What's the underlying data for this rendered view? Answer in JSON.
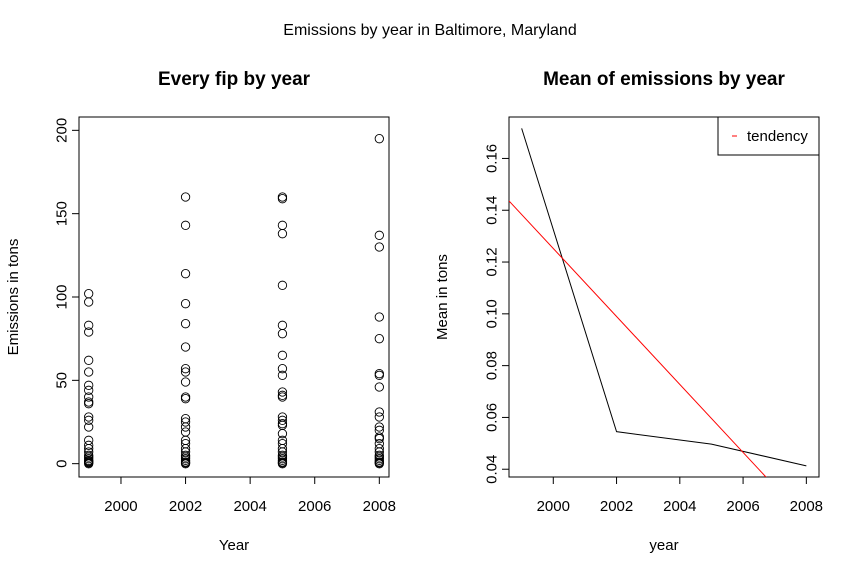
{
  "figure": {
    "title": "Emissions by year in Baltimore, Maryland"
  },
  "chart_data": [
    {
      "type": "scatter",
      "title": "Every fip by year",
      "xlabel": "Year",
      "ylabel": "Emissions in tons",
      "xlim": [
        1998.7,
        2008.3
      ],
      "ylim": [
        -8,
        208
      ],
      "x_ticks": [
        2000,
        2002,
        2004,
        2006,
        2008
      ],
      "y_ticks": [
        0,
        50,
        100,
        150,
        200
      ],
      "grid": false,
      "marker": "open-circle",
      "points": [
        [
          1999,
          102
        ],
        [
          1999,
          97
        ],
        [
          1999,
          83
        ],
        [
          1999,
          79
        ],
        [
          1999,
          62
        ],
        [
          1999,
          55
        ],
        [
          1999,
          47
        ],
        [
          1999,
          44
        ],
        [
          1999,
          40
        ],
        [
          1999,
          37
        ],
        [
          1999,
          36
        ],
        [
          1999,
          28
        ],
        [
          1999,
          26
        ],
        [
          1999,
          22
        ],
        [
          1999,
          14
        ],
        [
          1999,
          11
        ],
        [
          1999,
          9
        ],
        [
          1999,
          7
        ],
        [
          1999,
          5
        ],
        [
          1999,
          4
        ],
        [
          1999,
          3
        ],
        [
          1999,
          2
        ],
        [
          1999,
          1.5
        ],
        [
          1999,
          1
        ],
        [
          1999,
          0.5
        ],
        [
          1999,
          0
        ],
        [
          2002,
          160
        ],
        [
          2002,
          143
        ],
        [
          2002,
          114
        ],
        [
          2002,
          96
        ],
        [
          2002,
          84
        ],
        [
          2002,
          70
        ],
        [
          2002,
          57
        ],
        [
          2002,
          55
        ],
        [
          2002,
          49
        ],
        [
          2002,
          40
        ],
        [
          2002,
          39
        ],
        [
          2002,
          27
        ],
        [
          2002,
          25
        ],
        [
          2002,
          22
        ],
        [
          2002,
          19
        ],
        [
          2002,
          14
        ],
        [
          2002,
          12
        ],
        [
          2002,
          9
        ],
        [
          2002,
          7
        ],
        [
          2002,
          5
        ],
        [
          2002,
          4
        ],
        [
          2002,
          3
        ],
        [
          2002,
          2
        ],
        [
          2002,
          1
        ],
        [
          2002,
          0.5
        ],
        [
          2002,
          0
        ],
        [
          2005,
          160
        ],
        [
          2005,
          159
        ],
        [
          2005,
          143
        ],
        [
          2005,
          138
        ],
        [
          2005,
          107
        ],
        [
          2005,
          83
        ],
        [
          2005,
          78
        ],
        [
          2005,
          65
        ],
        [
          2005,
          57
        ],
        [
          2005,
          53
        ],
        [
          2005,
          43
        ],
        [
          2005,
          41
        ],
        [
          2005,
          40
        ],
        [
          2005,
          28
        ],
        [
          2005,
          26
        ],
        [
          2005,
          24
        ],
        [
          2005,
          23
        ],
        [
          2005,
          18
        ],
        [
          2005,
          14
        ],
        [
          2005,
          12
        ],
        [
          2005,
          9
        ],
        [
          2005,
          7
        ],
        [
          2005,
          5
        ],
        [
          2005,
          4
        ],
        [
          2005,
          3
        ],
        [
          2005,
          2
        ],
        [
          2005,
          1
        ],
        [
          2005,
          0.5
        ],
        [
          2005,
          0
        ],
        [
          2008,
          195
        ],
        [
          2008,
          137
        ],
        [
          2008,
          130
        ],
        [
          2008,
          88
        ],
        [
          2008,
          75
        ],
        [
          2008,
          54
        ],
        [
          2008,
          53
        ],
        [
          2008,
          46
        ],
        [
          2008,
          31
        ],
        [
          2008,
          28
        ],
        [
          2008,
          22
        ],
        [
          2008,
          20
        ],
        [
          2008,
          16
        ],
        [
          2008,
          15
        ],
        [
          2008,
          12
        ],
        [
          2008,
          9
        ],
        [
          2008,
          7
        ],
        [
          2008,
          5
        ],
        [
          2008,
          4
        ],
        [
          2008,
          3
        ],
        [
          2008,
          2
        ],
        [
          2008,
          1
        ],
        [
          2008,
          0.5
        ],
        [
          2008,
          0
        ]
      ]
    },
    {
      "type": "line",
      "title": "Mean of emissions by year",
      "xlabel": "year",
      "ylabel": "Mean in tons",
      "xlim": [
        1998.6,
        2008.4
      ],
      "ylim": [
        0.037,
        0.176
      ],
      "x_ticks": [
        2000,
        2002,
        2004,
        2006,
        2008
      ],
      "y_ticks": [
        0.04,
        0.06,
        0.08,
        0.1,
        0.12,
        0.14,
        0.16
      ],
      "y_tick_labels": [
        "0.04",
        "0.06",
        "0.08",
        "0.10",
        "0.12",
        "0.14",
        "0.16"
      ],
      "grid": false,
      "legend": {
        "position": "top-right",
        "entries": [
          {
            "label": "tendency",
            "color": "#ff0000"
          }
        ]
      },
      "series": [
        {
          "color": "#000000",
          "x": [
            1999,
            2002,
            2005,
            2008
          ],
          "y": [
            0.1716,
            0.0545,
            0.0497,
            0.0413
          ]
        },
        {
          "name": "tendency",
          "color": "#ff0000",
          "x": [
            1998.6,
            2008.4
          ],
          "y": [
            0.1436,
            0.015
          ]
        }
      ]
    }
  ]
}
